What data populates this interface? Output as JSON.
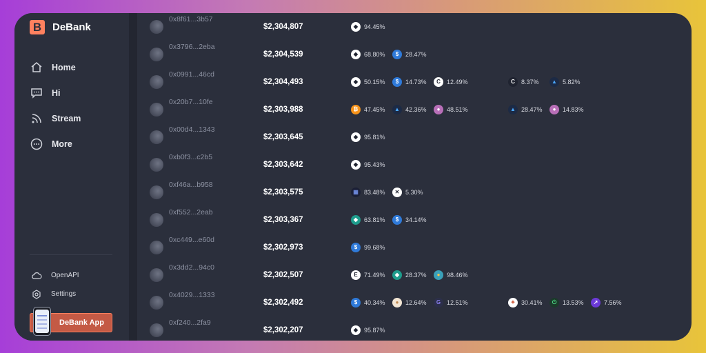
{
  "app": {
    "name": "DeBank",
    "logo_letter": "B"
  },
  "nav": [
    {
      "label": "Home",
      "icon": "home-icon"
    },
    {
      "label": "Hi",
      "icon": "chat-icon"
    },
    {
      "label": "Stream",
      "icon": "stream-icon"
    },
    {
      "label": "More",
      "icon": "more-icon"
    }
  ],
  "bottom_nav": [
    {
      "label": "OpenAPI",
      "icon": "cloud-icon"
    },
    {
      "label": "Settings",
      "icon": "gear-icon"
    }
  ],
  "app_button": {
    "label": "DeBank App"
  },
  "colors": {
    "accent": "#fe815f",
    "panel": "#2b2f3c",
    "text": "#ffffff",
    "muted": "#8c91a1"
  },
  "rows": [
    {
      "address": "0x8f61...3b57",
      "value": "$2,304,807",
      "assets": [
        {
          "icon": "eth",
          "pct": "94.45%"
        }
      ]
    },
    {
      "address": "0x3796...2eba",
      "value": "$2,304,539",
      "assets": [
        {
          "icon": "eth",
          "pct": "68.80%"
        },
        {
          "icon": "usdc",
          "pct": "28.47%"
        }
      ]
    },
    {
      "address": "0x0991...46cd",
      "value": "$2,304,493",
      "assets": [
        {
          "icon": "eth",
          "pct": "50.15%"
        },
        {
          "icon": "usdc",
          "pct": "14.73%"
        },
        {
          "icon": "c",
          "pct": "12.49%"
        },
        {
          "icon": "c-dark",
          "pct": "8.37%"
        },
        {
          "icon": "arb",
          "pct": "5.82%"
        }
      ]
    },
    {
      "address": "0x20b7...10fe",
      "value": "$2,303,988",
      "assets": [
        {
          "icon": "btc",
          "pct": "47.45%"
        },
        {
          "icon": "arb",
          "pct": "42.36%"
        },
        {
          "icon": "ghost",
          "pct": "48.51%"
        },
        {
          "icon": "arb",
          "pct": "28.47%"
        },
        {
          "icon": "ghost",
          "pct": "14.83%"
        }
      ]
    },
    {
      "address": "0x00d4...1343",
      "value": "$2,303,645",
      "assets": [
        {
          "icon": "eth",
          "pct": "95.81%"
        }
      ]
    },
    {
      "address": "0xb0f3...c2b5",
      "value": "$2,303,642",
      "assets": [
        {
          "icon": "eth",
          "pct": "95.43%"
        }
      ]
    },
    {
      "address": "0xf46a...b958",
      "value": "$2,303,575",
      "assets": [
        {
          "icon": "grid",
          "pct": "83.48%"
        },
        {
          "icon": "x",
          "pct": "5.30%"
        }
      ]
    },
    {
      "address": "0xf552...2eab",
      "value": "$2,303,367",
      "assets": [
        {
          "icon": "gem",
          "pct": "63.81%"
        },
        {
          "icon": "usdc",
          "pct": "34.14%"
        }
      ]
    },
    {
      "address": "0xc449...e60d",
      "value": "$2,302,973",
      "assets": [
        {
          "icon": "usdc",
          "pct": "99.68%"
        }
      ]
    },
    {
      "address": "0x3dd2...94c0",
      "value": "$2,302,507",
      "assets": [
        {
          "icon": "e",
          "pct": "71.49%"
        },
        {
          "icon": "gem",
          "pct": "28.37%"
        },
        {
          "icon": "globe",
          "pct": "98.46%"
        }
      ]
    },
    {
      "address": "0x4029...1333",
      "value": "$2,302,492",
      "assets": [
        {
          "icon": "usdc",
          "pct": "40.34%"
        },
        {
          "icon": "coin",
          "pct": "12.64%"
        },
        {
          "icon": "g",
          "pct": "12.51%"
        },
        {
          "icon": "swirl",
          "pct": "30.41%"
        },
        {
          "icon": "power",
          "pct": "13.53%"
        },
        {
          "icon": "chart",
          "pct": "7.56%"
        }
      ]
    },
    {
      "address": "0xf240...2fa9",
      "value": "$2,302,207",
      "assets": [
        {
          "icon": "eth",
          "pct": "95.87%"
        }
      ]
    }
  ]
}
